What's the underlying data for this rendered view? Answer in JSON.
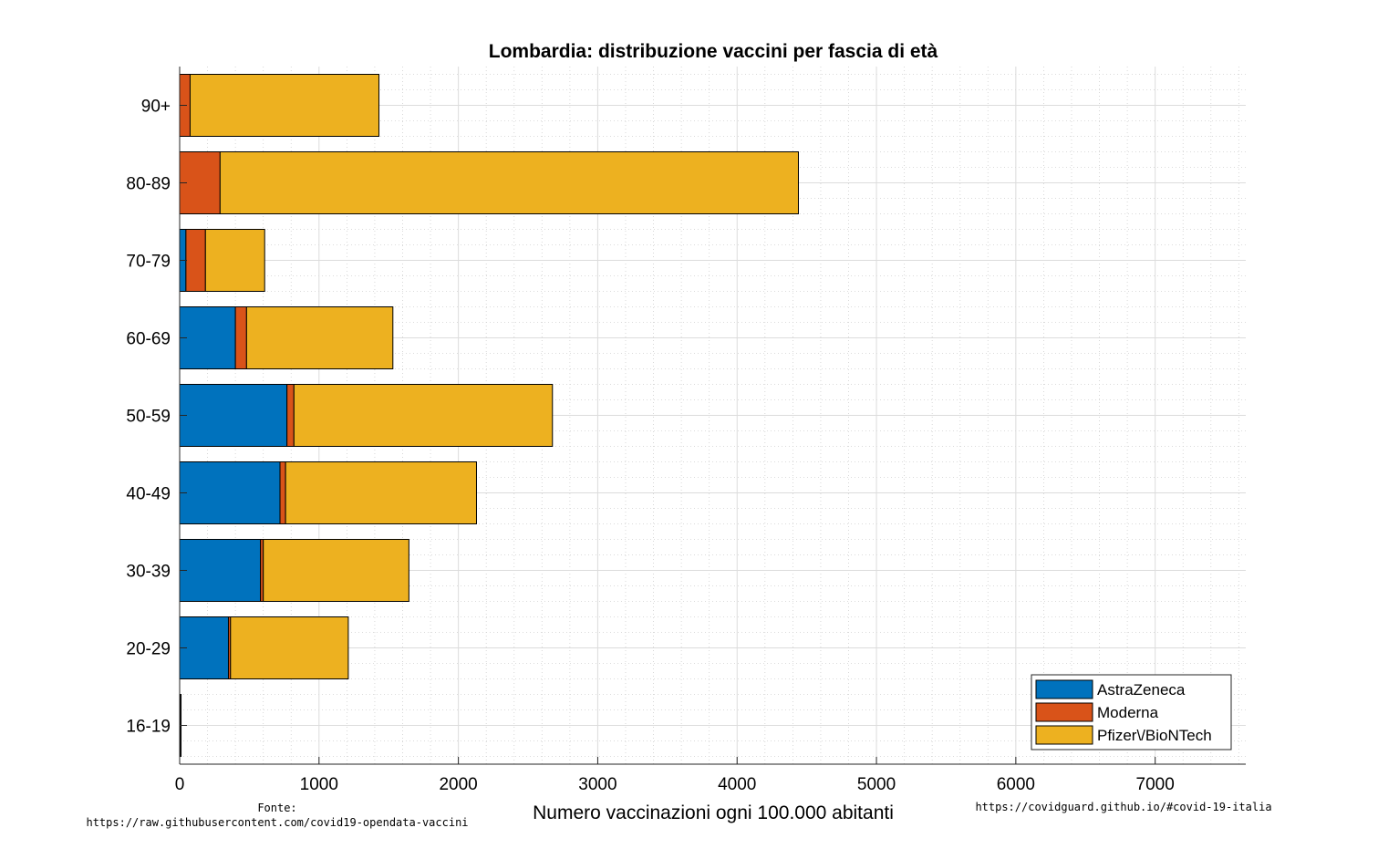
{
  "chart_data": {
    "type": "bar",
    "orientation": "horizontal",
    "stacked": true,
    "title": "Lombardia: distribuzione vaccini per fascia di età",
    "xlabel": "Numero vaccinazioni ogni 100.000 abitanti",
    "ylabel": "",
    "xlim": [
      0,
      7650
    ],
    "xticks": [
      0,
      1000,
      2000,
      3000,
      4000,
      5000,
      6000,
      7000
    ],
    "grid": true,
    "minor_grid": true,
    "legend_position": "bottom-right",
    "categories": [
      "16-19",
      "20-29",
      "30-39",
      "40-49",
      "50-59",
      "60-69",
      "70-79",
      "80-89",
      "90+"
    ],
    "series": [
      {
        "name": "AstraZeneca",
        "color": "#0072BD",
        "values": [
          0,
          350,
          580,
          720,
          770,
          400,
          45,
          0,
          0
        ]
      },
      {
        "name": "Moderna",
        "color": "#D95319",
        "values": [
          5,
          15,
          20,
          40,
          50,
          80,
          140,
          290,
          75
        ]
      },
      {
        "name": "Pfizer\\/BioNTech",
        "color": "#EDB120",
        "values": [
          5,
          845,
          1045,
          1370,
          1855,
          1050,
          425,
          4150,
          1355
        ]
      }
    ]
  },
  "footer": {
    "source_label": "Fonte:",
    "source_url": "https://raw.githubusercontent.com/covid19-opendata-vaccini",
    "site_url": "https://covidguard.github.io/#covid-19-italia"
  }
}
